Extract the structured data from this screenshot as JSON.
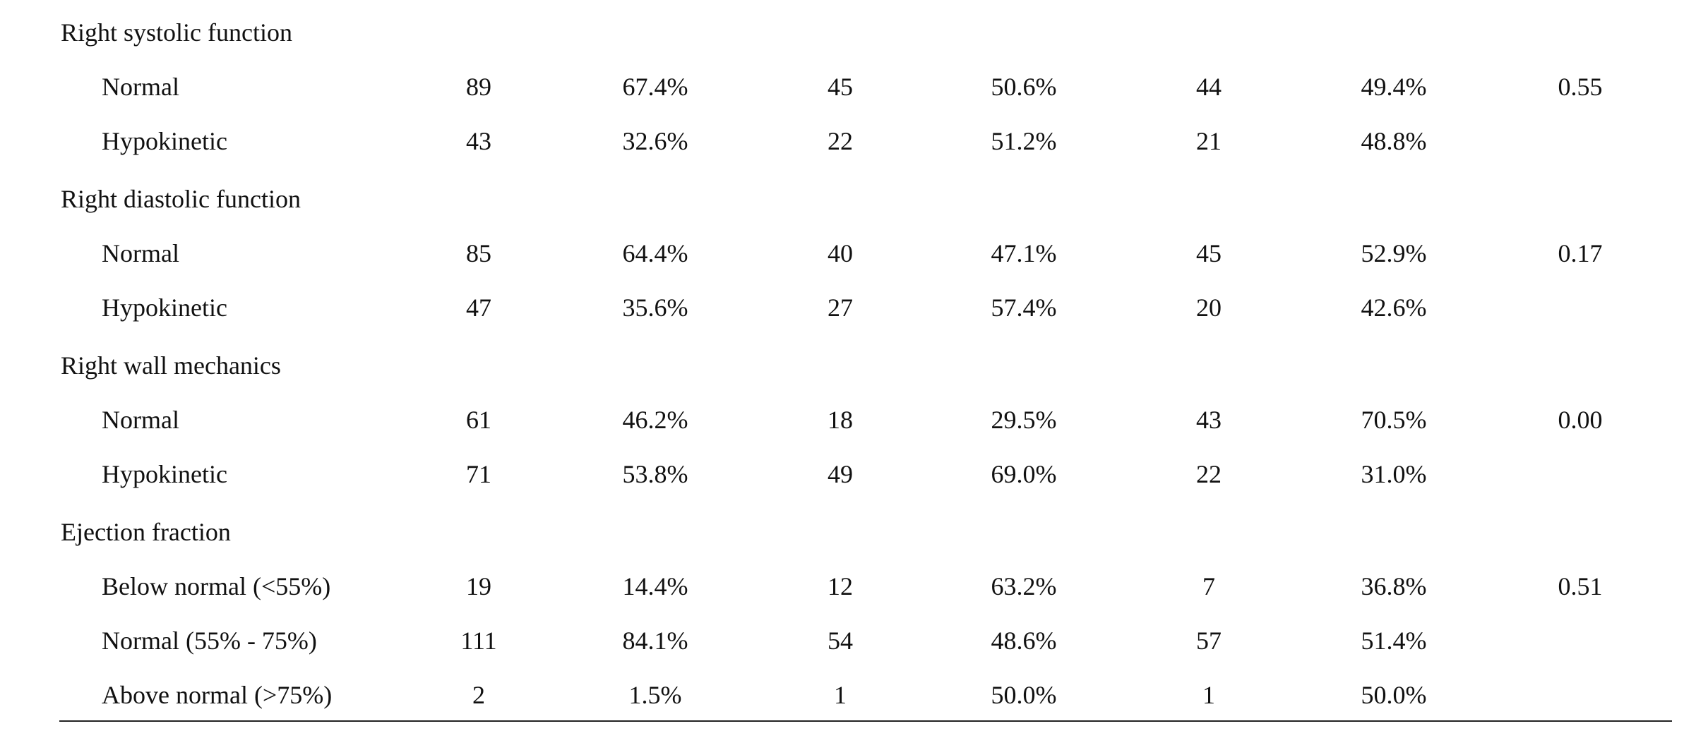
{
  "sections": [
    {
      "label": "Right systolic function",
      "rows": [
        {
          "label": "Normal",
          "values": [
            "89",
            "67.4%",
            "45",
            "50.6%",
            "44",
            "49.4%",
            "0.55"
          ]
        },
        {
          "label": "Hypokinetic",
          "values": [
            "43",
            "32.6%",
            "22",
            "51.2%",
            "21",
            "48.8%",
            ""
          ]
        }
      ]
    },
    {
      "label": "Right diastolic function",
      "rows": [
        {
          "label": "Normal",
          "values": [
            "85",
            "64.4%",
            "40",
            "47.1%",
            "45",
            "52.9%",
            "0.17"
          ]
        },
        {
          "label": "Hypokinetic",
          "values": [
            "47",
            "35.6%",
            "27",
            "57.4%",
            "20",
            "42.6%",
            ""
          ]
        }
      ]
    },
    {
      "label": "Right wall mechanics",
      "rows": [
        {
          "label": "Normal",
          "values": [
            "61",
            "46.2%",
            "18",
            "29.5%",
            "43",
            "70.5%",
            "0.00"
          ]
        },
        {
          "label": "Hypokinetic",
          "values": [
            "71",
            "53.8%",
            "49",
            "69.0%",
            "22",
            "31.0%",
            ""
          ]
        }
      ]
    },
    {
      "label": "Ejection fraction",
      "rows": [
        {
          "label": "Below normal (<55%)",
          "values": [
            "19",
            "14.4%",
            "12",
            "63.2%",
            "7",
            "36.8%",
            "0.51"
          ]
        },
        {
          "label": "Normal (55% - 75%)",
          "values": [
            "111",
            "84.1%",
            "54",
            "48.6%",
            "57",
            "51.4%",
            ""
          ]
        },
        {
          "label": "Above normal (>75%)",
          "values": [
            "2",
            "1.5%",
            "1",
            "50.0%",
            "1",
            "50.0%",
            ""
          ]
        }
      ]
    }
  ]
}
